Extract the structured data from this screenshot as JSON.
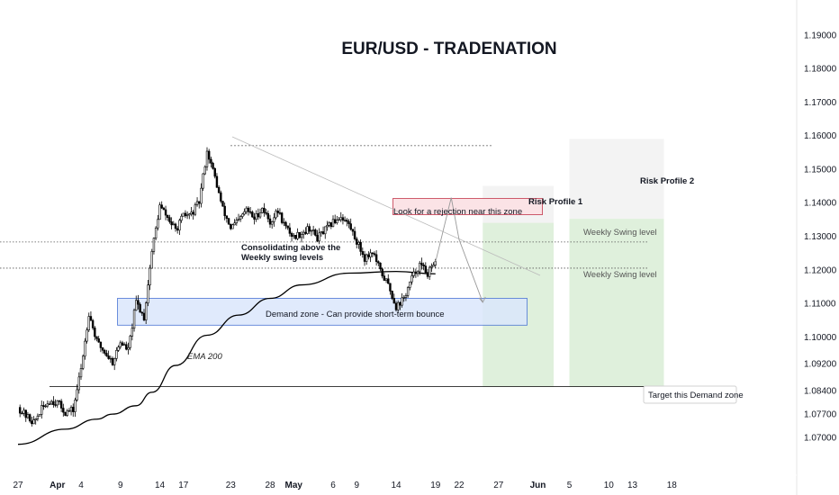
{
  "chart_data": {
    "type": "candlestick",
    "title": "EUR/USD - TRADENATION",
    "y_axis": {
      "side": "right",
      "ylim": [
        1.0655,
        1.1945
      ],
      "ticks": [
        "1.19000",
        "1.18000",
        "1.17000",
        "1.16000",
        "1.15000",
        "1.14000",
        "1.13000",
        "1.12000",
        "1.11000",
        "1.10000",
        "1.09200",
        "1.08400",
        "1.07700",
        "1.07000"
      ]
    },
    "x_axis": {
      "ticks": [
        {
          "label": "27",
          "day": 0,
          "bold": false
        },
        {
          "label": "Apr",
          "day": 5,
          "bold": true
        },
        {
          "label": "4",
          "day": 8,
          "bold": false
        },
        {
          "label": "9",
          "day": 13,
          "bold": false
        },
        {
          "label": "14",
          "day": 18,
          "bold": false
        },
        {
          "label": "17",
          "day": 21,
          "bold": false
        },
        {
          "label": "23",
          "day": 27,
          "bold": false
        },
        {
          "label": "28",
          "day": 32,
          "bold": false
        },
        {
          "label": "May",
          "day": 35,
          "bold": true
        },
        {
          "label": "6",
          "day": 40,
          "bold": false
        },
        {
          "label": "9",
          "day": 43,
          "bold": false
        },
        {
          "label": "14",
          "day": 48,
          "bold": false
        },
        {
          "label": "19",
          "day": 53,
          "bold": false
        },
        {
          "label": "22",
          "day": 56,
          "bold": false
        },
        {
          "label": "27",
          "day": 61,
          "bold": false
        },
        {
          "label": "Jun",
          "day": 66,
          "bold": true
        },
        {
          "label": "5",
          "day": 70,
          "bold": false
        },
        {
          "label": "10",
          "day": 75,
          "bold": false
        },
        {
          "label": "13",
          "day": 78,
          "bold": false
        },
        {
          "label": "18",
          "day": 83,
          "bold": false
        }
      ]
    },
    "price_path": [
      {
        "day": 0,
        "price": 1.079
      },
      {
        "day": 1,
        "price": 1.0765
      },
      {
        "day": 2,
        "price": 1.0745
      },
      {
        "day": 3,
        "price": 1.0785
      },
      {
        "day": 4,
        "price": 1.081
      },
      {
        "day": 5,
        "price": 1.0805
      },
      {
        "day": 6,
        "price": 1.0775
      },
      {
        "day": 7,
        "price": 1.0782
      },
      {
        "day": 8,
        "price": 1.0905
      },
      {
        "day": 9,
        "price": 1.1072
      },
      {
        "day": 10,
        "price": 1.0985
      },
      {
        "day": 11,
        "price": 1.0955
      },
      {
        "day": 12,
        "price": 1.0925
      },
      {
        "day": 13,
        "price": 1.0985
      },
      {
        "day": 14,
        "price": 1.096
      },
      {
        "day": 15,
        "price": 1.1105
      },
      {
        "day": 16,
        "price": 1.1058
      },
      {
        "day": 17,
        "price": 1.1255
      },
      {
        "day": 18,
        "price": 1.139
      },
      {
        "day": 19,
        "price": 1.1355
      },
      {
        "day": 20,
        "price": 1.1318
      },
      {
        "day": 21,
        "price": 1.136
      },
      {
        "day": 22,
        "price": 1.1365
      },
      {
        "day": 23,
        "price": 1.1402
      },
      {
        "day": 24,
        "price": 1.1555
      },
      {
        "day": 25,
        "price": 1.1475
      },
      {
        "day": 26,
        "price": 1.138
      },
      {
        "day": 27,
        "price": 1.1325
      },
      {
        "day": 28,
        "price": 1.1345
      },
      {
        "day": 29,
        "price": 1.138
      },
      {
        "day": 30,
        "price": 1.1352
      },
      {
        "day": 31,
        "price": 1.1385
      },
      {
        "day": 32,
        "price": 1.1342
      },
      {
        "day": 33,
        "price": 1.1375
      },
      {
        "day": 34,
        "price": 1.1325
      },
      {
        "day": 35,
        "price": 1.1298
      },
      {
        "day": 36,
        "price": 1.131
      },
      {
        "day": 37,
        "price": 1.1325
      },
      {
        "day": 38,
        "price": 1.1295
      },
      {
        "day": 39,
        "price": 1.1318
      },
      {
        "day": 40,
        "price": 1.1342
      },
      {
        "day": 41,
        "price": 1.136
      },
      {
        "day": 42,
        "price": 1.1335
      },
      {
        "day": 43,
        "price": 1.1285
      },
      {
        "day": 44,
        "price": 1.1235
      },
      {
        "day": 45,
        "price": 1.1255
      },
      {
        "day": 46,
        "price": 1.1195
      },
      {
        "day": 47,
        "price": 1.1155
      },
      {
        "day": 48,
        "price": 1.109
      },
      {
        "day": 49,
        "price": 1.1115
      },
      {
        "day": 50,
        "price": 1.1175
      },
      {
        "day": 51,
        "price": 1.1215
      },
      {
        "day": 52,
        "price": 1.119
      },
      {
        "day": 53,
        "price": 1.1215
      }
    ],
    "ema_200": [
      {
        "day": 0,
        "value": 1.068
      },
      {
        "day": 6,
        "value": 1.0725
      },
      {
        "day": 10,
        "value": 1.0755
      },
      {
        "day": 12,
        "value": 1.077
      },
      {
        "day": 15,
        "value": 1.0795
      },
      {
        "day": 17,
        "value": 1.0835
      },
      {
        "day": 20,
        "value": 1.0915
      },
      {
        "day": 24,
        "value": 1.1005
      },
      {
        "day": 28,
        "value": 1.1065
      },
      {
        "day": 32,
        "value": 1.1115
      },
      {
        "day": 36,
        "value": 1.1155
      },
      {
        "day": 42,
        "value": 1.119
      },
      {
        "day": 48,
        "value": 1.1195
      },
      {
        "day": 53,
        "value": 1.1188
      }
    ],
    "ema_label": "EMA 200",
    "levels": [
      {
        "name": "weekly-swing-upper",
        "price": 1.1283,
        "style": "dotted"
      },
      {
        "name": "weekly-swing-lower",
        "price": 1.1205,
        "style": "dotted"
      },
      {
        "name": "demand-target",
        "price": 1.0852,
        "style": "solid"
      },
      {
        "name": "top-reference",
        "price": 1.157,
        "style": "dashed"
      }
    ],
    "demand_zone": {
      "price_top": 1.1115,
      "price_bottom": 1.1035,
      "day_start": 14,
      "day_end": 50,
      "label": "Demand zone - Can provide short-term bounce"
    },
    "rejection_zone": {
      "price_top": 1.1383,
      "price_bottom": 1.136,
      "day_start": 42,
      "day_end": 59,
      "label": "Look for a rejection near this zone"
    },
    "risk_profiles": [
      {
        "label": "Risk Profile 1",
        "day_start": 59,
        "day_end": 68,
        "risk_top": 1.145,
        "entry": 1.134,
        "target": 1.0852
      },
      {
        "label": "Risk Profile 2",
        "day_start": 70,
        "day_end": 82,
        "risk_top": 1.159,
        "entry": 1.1352,
        "target": 1.0852
      }
    ],
    "annotations": {
      "consolidation": [
        "Consolidating above the",
        "Weekly swing levels"
      ],
      "weekly_swing_upper": "Weekly Swing level",
      "weekly_swing_lower": "Weekly Swing level",
      "target_demand": "Target this Demand zone"
    },
    "projection_path": [
      {
        "day": 53,
        "price": 1.1223
      },
      {
        "day": 55,
        "price": 1.1415
      },
      {
        "day": 56,
        "price": 1.129
      },
      {
        "day": 59,
        "price": 1.1103
      }
    ],
    "colors": {
      "up": "#ffffff",
      "down": "#000000",
      "wick": "#000000",
      "ema": "#000000",
      "demand_fill": "#dbe6fb",
      "demand_stroke": "#4a74d4",
      "rejection_fill": "#fbe3e6",
      "rejection_stroke": "#c2354a",
      "reward_fill": "#dff0dc",
      "risk_fill": "#f3f3f3"
    }
  }
}
